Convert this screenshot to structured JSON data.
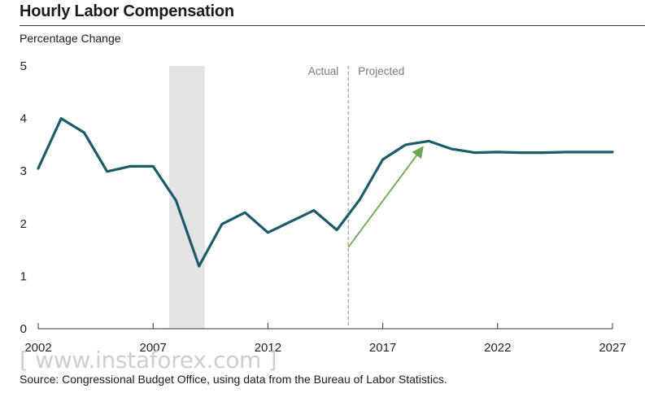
{
  "header": {
    "title": "Hourly Labor Compensation",
    "subtitle": "Percentage Change"
  },
  "footer": {
    "source": "Source: Congressional Budget Office, using data from the Bureau of Labor Statistics.",
    "watermark": "[ www.instaforex.com ]"
  },
  "chart_data": {
    "type": "line",
    "title": "Hourly Labor Compensation",
    "ylabel": "Percentage Change",
    "xlim": [
      2002,
      2027
    ],
    "ylim": [
      0,
      5
    ],
    "xticks": [
      2002,
      2007,
      2012,
      2017,
      2022,
      2027
    ],
    "yticks": [
      0,
      1,
      2,
      3,
      4,
      5
    ],
    "grid": false,
    "recession_shading": [
      2007.7,
      2009.25
    ],
    "divider": {
      "x": 2015.5,
      "left_label": "Actual",
      "right_label": "Projected"
    },
    "series": [
      {
        "color": "#1d5a6a",
        "x": [
          2002,
          2003,
          2004,
          2005,
          2006,
          2007,
          2008,
          2009,
          2010,
          2011,
          2012,
          2013,
          2014,
          2015,
          2016,
          2017,
          2018,
          2019,
          2020,
          2021,
          2022,
          2023,
          2024,
          2025,
          2026,
          2027
        ],
        "y": [
          3.05,
          4.0,
          3.73,
          2.99,
          3.09,
          3.09,
          2.44,
          1.19,
          1.99,
          2.21,
          1.83,
          2.04,
          2.25,
          1.88,
          2.46,
          3.22,
          3.5,
          3.57,
          3.42,
          3.35,
          3.36,
          3.35,
          3.35,
          3.36,
          3.36,
          3.36
        ]
      }
    ],
    "annotation_arrow": {
      "color": "#6aa84f",
      "from": [
        2015.5,
        1.55
      ],
      "to": [
        2018.7,
        3.43
      ]
    }
  }
}
